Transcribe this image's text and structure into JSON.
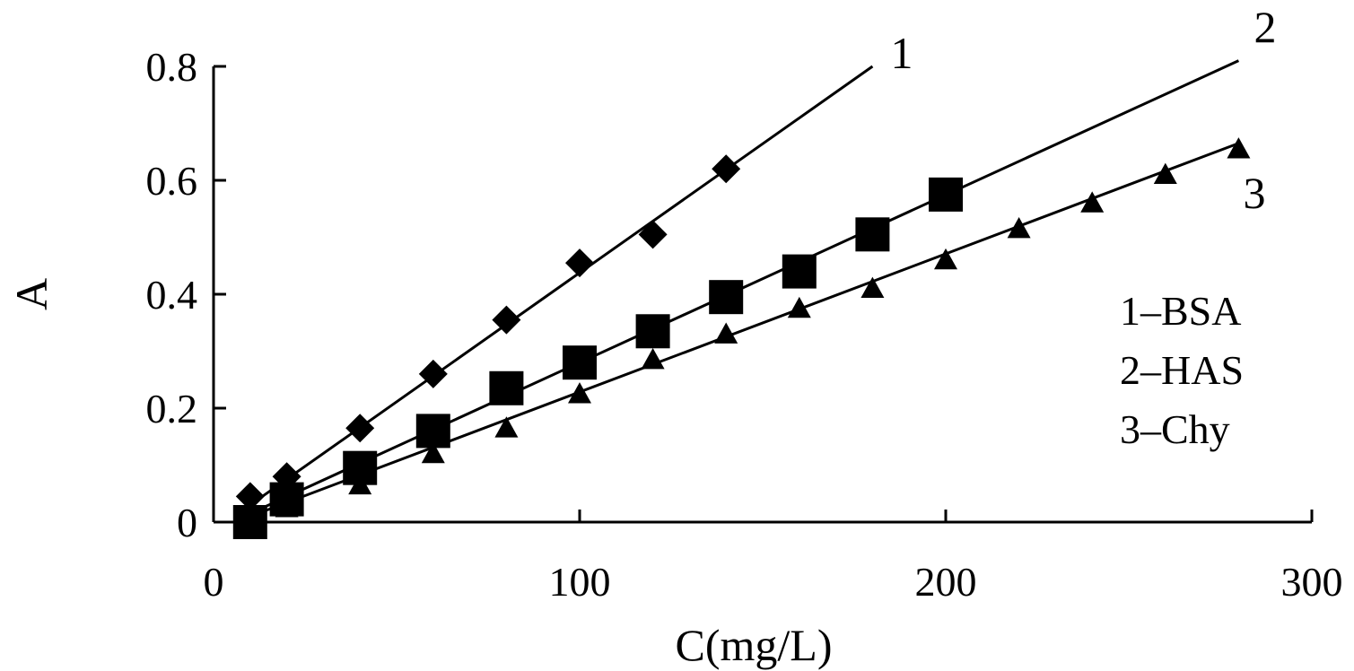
{
  "chart_data": {
    "type": "scatter",
    "xlabel": "C(mg/L)",
    "ylabel": "A",
    "xlim": [
      0,
      300
    ],
    "ylim": [
      0,
      0.8
    ],
    "xticks": [
      0,
      100,
      200,
      300
    ],
    "yticks": [
      0,
      0.2,
      0.4,
      0.6,
      0.8
    ],
    "xtick_labels": [
      "0",
      "100",
      "200",
      "300"
    ],
    "ytick_labels": [
      "0",
      "0.2",
      "0.4",
      "0.6",
      "0.8"
    ],
    "grid": false,
    "legend_position": "right",
    "legend": [
      "1–BSA",
      "2–HAS",
      "3–Chy"
    ],
    "series": [
      {
        "name": "1–BSA",
        "label": "1",
        "marker": "diamond",
        "points": [
          [
            10,
            0.045
          ],
          [
            20,
            0.08
          ],
          [
            40,
            0.165
          ],
          [
            60,
            0.26
          ],
          [
            80,
            0.355
          ],
          [
            100,
            0.455
          ],
          [
            120,
            0.505
          ],
          [
            140,
            0.62
          ]
        ],
        "fit_line": [
          [
            10,
            0.03
          ],
          [
            180,
            0.8
          ]
        ]
      },
      {
        "name": "2–HAS",
        "label": "2",
        "marker": "square",
        "points": [
          [
            10,
            0.0
          ],
          [
            20,
            0.04
          ],
          [
            40,
            0.095
          ],
          [
            60,
            0.16
          ],
          [
            80,
            0.235
          ],
          [
            100,
            0.28
          ],
          [
            120,
            0.335
          ],
          [
            140,
            0.395
          ],
          [
            160,
            0.44
          ],
          [
            180,
            0.505
          ],
          [
            200,
            0.575
          ]
        ],
        "fit_line": [
          [
            10,
            0.015
          ],
          [
            280,
            0.81
          ]
        ]
      },
      {
        "name": "3–Chy",
        "label": "3",
        "marker": "triangle",
        "points": [
          [
            10,
            0.0
          ],
          [
            20,
            0.025
          ],
          [
            40,
            0.065
          ],
          [
            60,
            0.12
          ],
          [
            80,
            0.165
          ],
          [
            100,
            0.225
          ],
          [
            120,
            0.285
          ],
          [
            140,
            0.33
          ],
          [
            160,
            0.375
          ],
          [
            180,
            0.41
          ],
          [
            200,
            0.46
          ],
          [
            220,
            0.515
          ],
          [
            240,
            0.56
          ],
          [
            260,
            0.61
          ],
          [
            280,
            0.655
          ]
        ],
        "fit_line": [
          [
            10,
            0.01
          ],
          [
            280,
            0.665
          ]
        ]
      }
    ]
  }
}
